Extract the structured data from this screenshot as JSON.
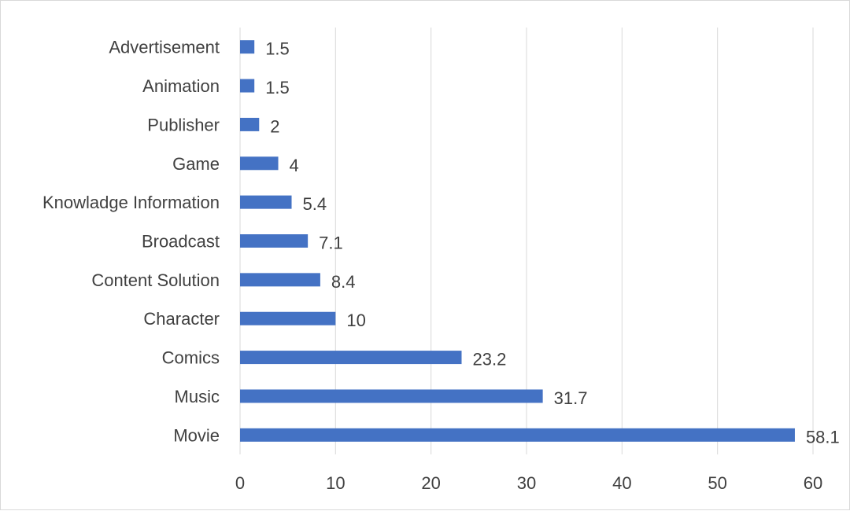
{
  "chart_data": {
    "type": "bar",
    "orientation": "horizontal",
    "title": "",
    "xlabel": "",
    "ylabel": "",
    "xlim": [
      0,
      60
    ],
    "x_ticks": [
      0,
      10,
      20,
      30,
      40,
      50,
      60
    ],
    "grid": true,
    "legend": "none",
    "bar_color": "#4472C4",
    "categories": [
      "Advertisement",
      "Animation",
      "Publisher",
      "Game",
      "Knowladge Information",
      "Broadcast",
      "Content Solution",
      "Character",
      "Comics",
      "Music",
      "Movie"
    ],
    "values": [
      1.5,
      1.5,
      2,
      4,
      5.4,
      7.1,
      8.4,
      10,
      23.2,
      31.7,
      58.1
    ]
  }
}
